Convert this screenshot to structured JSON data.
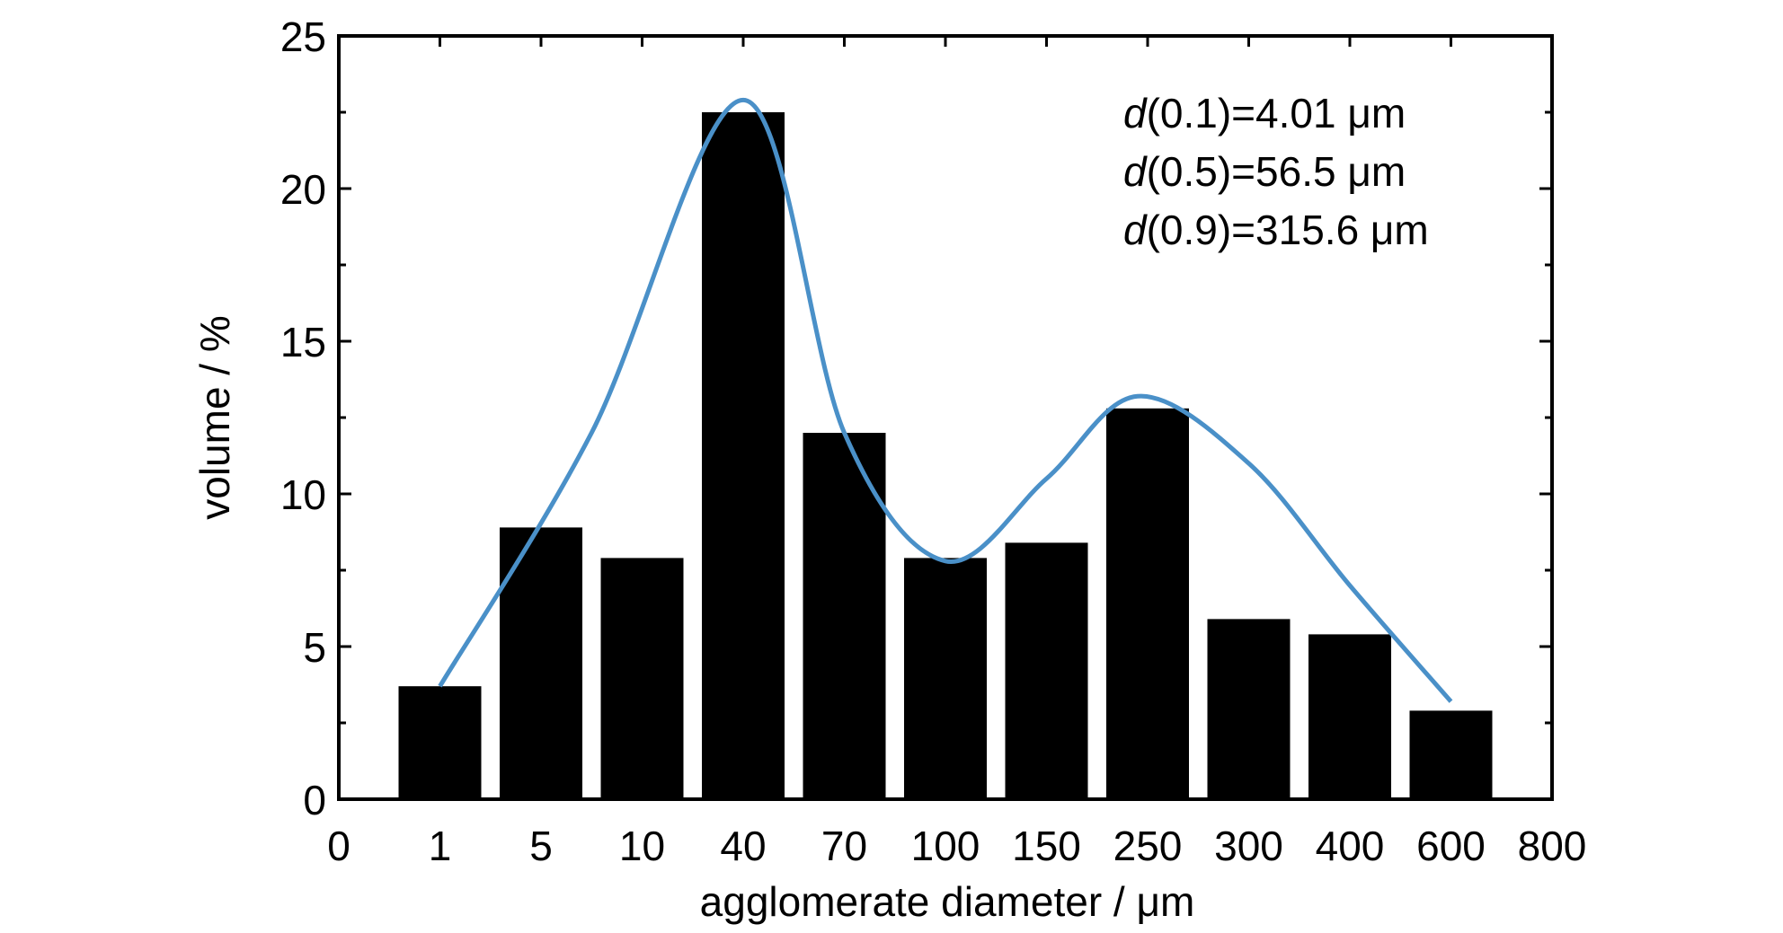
{
  "chart_data": {
    "type": "bar",
    "xlabel": "agglomerate diameter / μm",
    "ylabel": "volume / %",
    "x_tick_labels": [
      "0",
      "1",
      "5",
      "10",
      "40",
      "70",
      "100",
      "150",
      "250",
      "300",
      "400",
      "600",
      "800"
    ],
    "categories": [
      "1",
      "5",
      "10",
      "40",
      "70",
      "100",
      "150",
      "250",
      "300",
      "400",
      "600"
    ],
    "values": [
      3.7,
      8.9,
      7.9,
      22.5,
      12.0,
      7.9,
      8.4,
      12.8,
      5.9,
      5.4,
      2.9
    ],
    "y_ticks": [
      0,
      5,
      10,
      15,
      20,
      25
    ],
    "ylim": [
      0,
      25
    ],
    "fit_curve": {
      "color": "#4a90c8",
      "points": [
        [
          1,
          3.7
        ],
        [
          2.5,
          12.0
        ],
        [
          4,
          22.9
        ],
        [
          5,
          12.0
        ],
        [
          6,
          7.8
        ],
        [
          7,
          10.5
        ],
        [
          7.9,
          13.2
        ],
        [
          9,
          11.0
        ],
        [
          10,
          7.0
        ],
        [
          11,
          3.2
        ]
      ]
    },
    "annotations": [
      {
        "prefix": "d",
        "text": "(0.1)=4.01 μm"
      },
      {
        "prefix": "d",
        "text": "(0.5)=56.5 μm"
      },
      {
        "prefix": "d",
        "text": "(0.9)=315.6 μm"
      }
    ],
    "bar_color": "#000000",
    "grid": false
  }
}
